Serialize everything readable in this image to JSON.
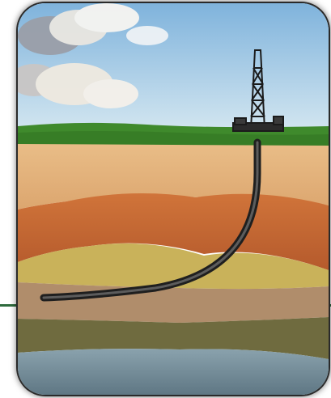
{
  "image": {
    "subject": "horizontal-drilling-illustration",
    "colors": {
      "sky_top": "#7fb3dc",
      "sky_bottom": "#cfe4ef",
      "grass": "#3f8a2c",
      "sand_layer": "#e3b07a",
      "clay_layer": "#c96a35",
      "yellow_layer": "#c9b25a",
      "tan_layer": "#b08d6b",
      "dark_layer": "#6f6b3f",
      "rock_layer": "#7d93a0",
      "pipe": "#2a2a2a",
      "frame_rule": "#2e6b3d"
    },
    "icons": [
      "drilling-rig-icon",
      "well-pipe-icon"
    ]
  }
}
